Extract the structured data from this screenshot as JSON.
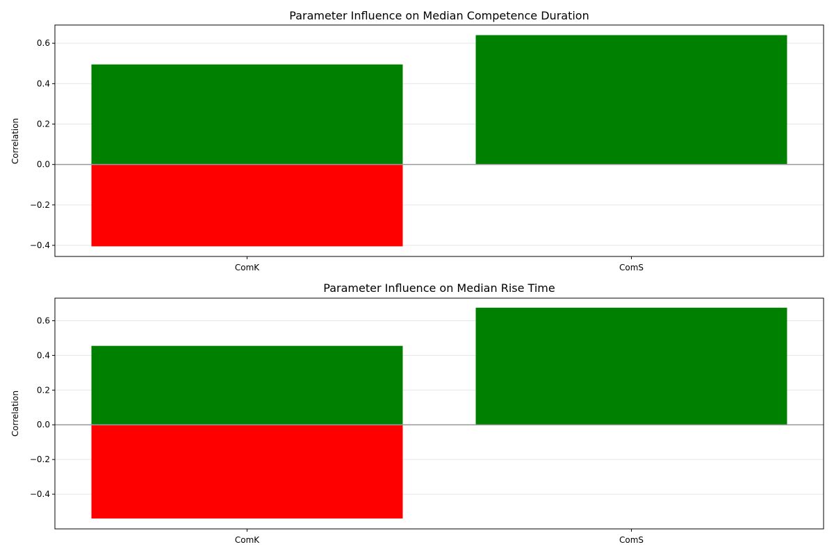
{
  "chart_data": [
    {
      "type": "bar",
      "title": "Parameter Influence on Median Competence Duration",
      "xlabel": "",
      "ylabel": "Correlation",
      "categories": [
        "ComK",
        "ComS"
      ],
      "series": [
        {
          "values": [
            0.495,
            0.64
          ],
          "color": "#008000"
        },
        {
          "values": [
            -0.405,
            0.0
          ],
          "color": "#ff0000"
        }
      ],
      "ylim": [
        -0.455,
        0.69
      ],
      "yticks": [
        -0.4,
        -0.2,
        0.0,
        0.2,
        0.4,
        0.6
      ],
      "ytick_labels": [
        "−0.4",
        "−0.2",
        "0.0",
        "0.2",
        "0.4",
        "0.6"
      ],
      "grid": true,
      "zero_line": true
    },
    {
      "type": "bar",
      "title": "Parameter Influence on Median Rise Time",
      "xlabel": "",
      "ylabel": "Correlation",
      "categories": [
        "ComK",
        "ComS"
      ],
      "series": [
        {
          "values": [
            0.455,
            0.675
          ],
          "color": "#008000"
        },
        {
          "values": [
            -0.54,
            0.0
          ],
          "color": "#ff0000"
        }
      ],
      "ylim": [
        -0.6,
        0.73
      ],
      "yticks": [
        -0.4,
        -0.2,
        0.0,
        0.2,
        0.4,
        0.6
      ],
      "ytick_labels": [
        "−0.4",
        "−0.2",
        "0.0",
        "0.2",
        "0.4",
        "0.6"
      ],
      "grid": true,
      "zero_line": true
    }
  ]
}
